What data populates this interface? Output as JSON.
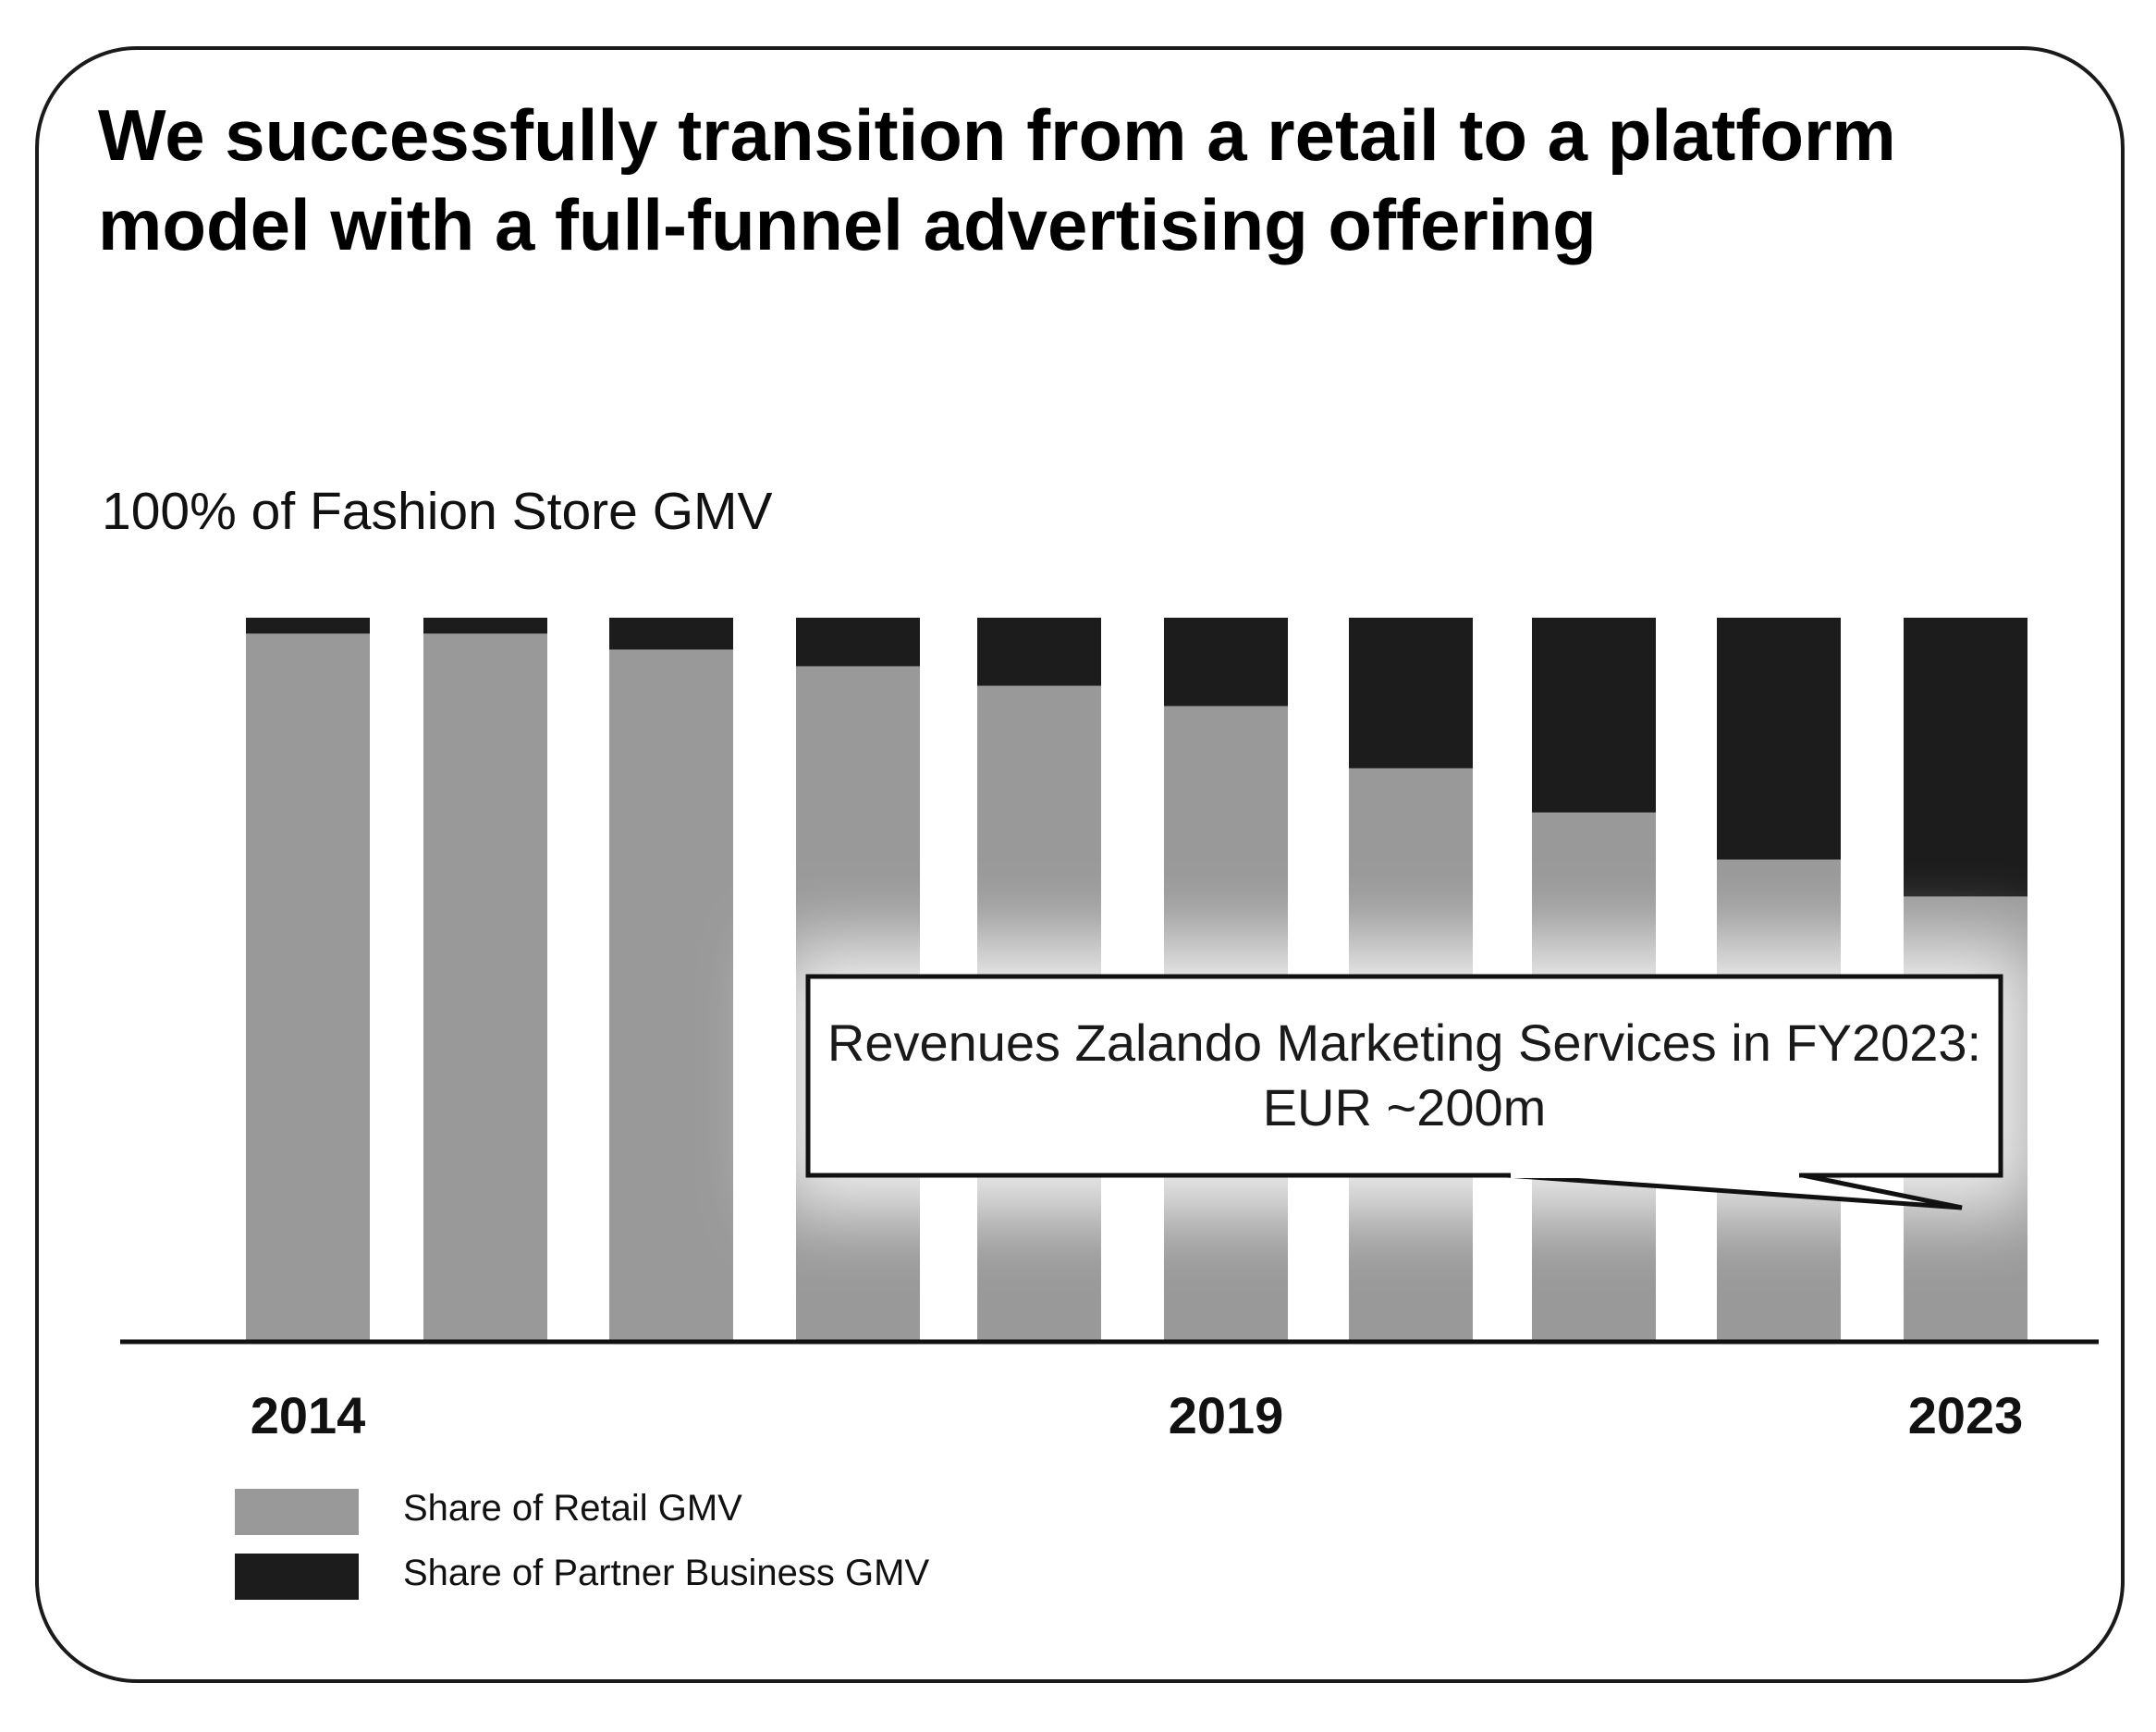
{
  "chart_data": {
    "type": "bar",
    "stacked": true,
    "title": "We successfully transition from a retail to a platform model with a full-funnel advertising offering",
    "subtitle": "100% of Fashion Store GMV",
    "categories": [
      "2014",
      "",
      "",
      "",
      "",
      "2019",
      "",
      "",
      "",
      "2023"
    ],
    "x": [
      2014,
      2015,
      2016,
      2017,
      2018,
      2019,
      2020,
      2021,
      2022,
      2023
    ],
    "series": [
      {
        "name": "Share of Retail GMV",
        "color": "#999999",
        "values": [
          97.8,
          97.8,
          95.6,
          93.3,
          90.6,
          87.8,
          79.2,
          73.1,
          66.6,
          61.5
        ]
      },
      {
        "name": "Share of Partner Business GMV",
        "color": "#1c1c1c",
        "values": [
          2.2,
          2.2,
          4.4,
          6.7,
          9.4,
          12.2,
          20.8,
          26.9,
          33.4,
          38.5
        ]
      }
    ],
    "ylim": [
      0,
      100
    ],
    "xlabel": "",
    "ylabel": "",
    "grid": false,
    "legend": "bottom-left",
    "annotation": {
      "text": "Revenues Zalando Marketing Services in FY2023: EUR ~200m",
      "points_to": "2023"
    }
  }
}
